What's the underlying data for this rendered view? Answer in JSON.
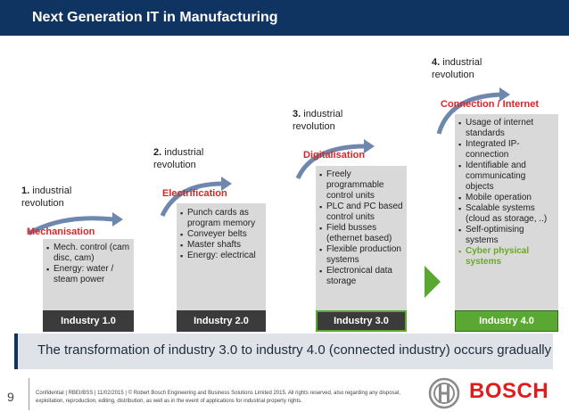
{
  "header": {
    "title": "Next Generation IT in Manufacturing"
  },
  "stages": [
    {
      "rev_num": "1.",
      "rev_text_1": "industrial",
      "rev_text_2": "revolution",
      "phase": "Mechanisation",
      "bullets": [
        "Mech. control (cam disc, cam)",
        "Energy: water / steam power"
      ],
      "industry": "Industry 1.0"
    },
    {
      "rev_num": "2.",
      "rev_text_1": "industrial",
      "rev_text_2": "revolution",
      "phase": "Electrification",
      "bullets": [
        "Punch cards as program memory",
        "Conveyer belts",
        "Master shafts",
        "Energy: electrical"
      ],
      "industry": "Industry 2.0"
    },
    {
      "rev_num": "3.",
      "rev_text_1": "industrial",
      "rev_text_2": "revolution",
      "phase": "Digitalisation",
      "bullets": [
        "Freely programmable control units",
        "PLC and PC based control units",
        "Field busses (ethernet based)",
        "Flexible production systems",
        "Electronical data storage"
      ],
      "industry": "Industry 3.0"
    },
    {
      "rev_num": "4.",
      "rev_text_1": "industrial",
      "rev_text_2": "revolution",
      "phase": "Connection / Internet",
      "bullets": [
        "Usage of internet standards",
        "Integrated IP-connection",
        "Identifiable and communicating objects",
        "Mobile operation",
        "Scalable systems (cloud as storage, ..)",
        "Self-optimising systems"
      ],
      "highlight": "Cyber physical systems",
      "industry": "Industry 4.0"
    }
  ],
  "banner": {
    "text": "The transformation of industry 3.0 to industry 4.0 (connected industry) occurs gradually"
  },
  "footer": {
    "page_number": "9",
    "legal": "Confidential | RBEI/BSS | 11/02/2015 | © Robert Bosch Engineering and Business Solutions Limited 2015. All rights reserved, also regarding any disposal, exploitation, reproduction, editing, distribution, as well as in the event of applications for industrial property rights.",
    "brand": "BOSCH"
  },
  "colors": {
    "header": "#0f3461",
    "accent_red": "#d9262b",
    "accent_green": "#5aa832",
    "industry_dark": "#3b3b3b"
  }
}
